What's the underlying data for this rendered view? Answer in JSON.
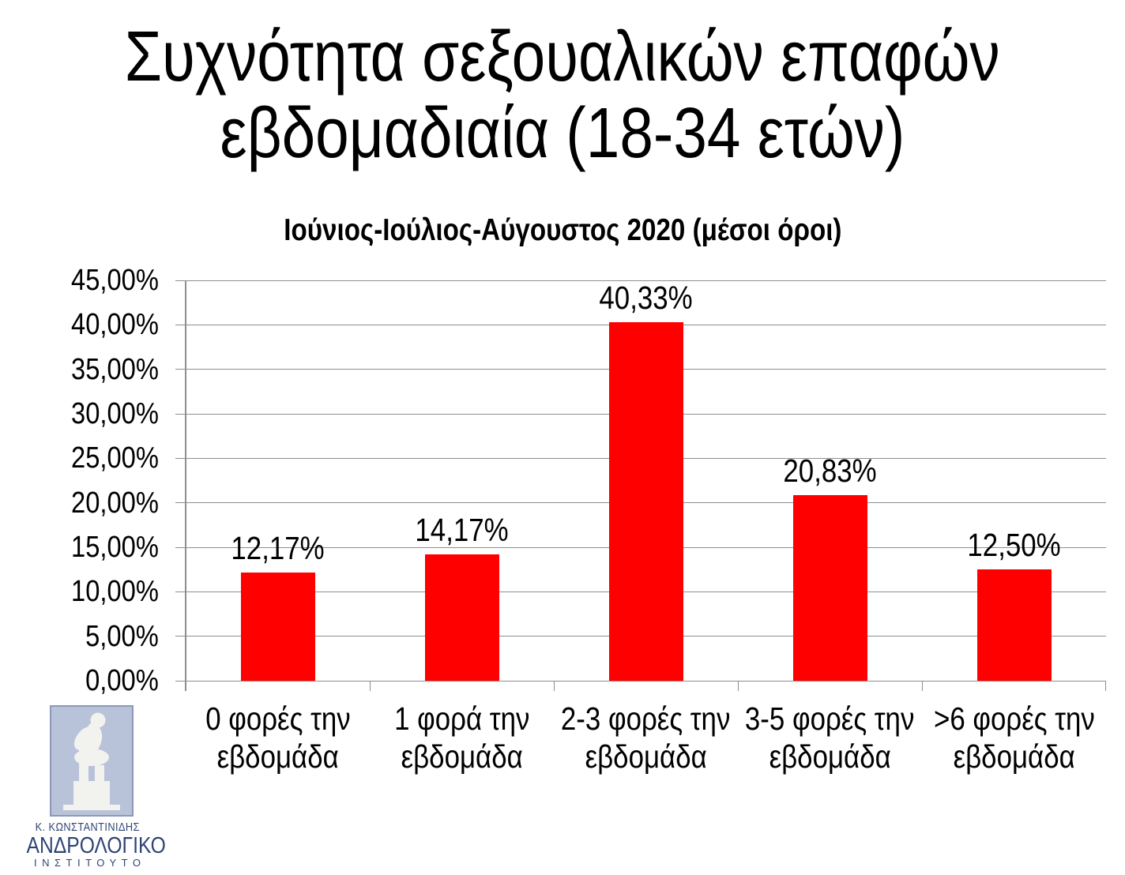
{
  "header": {
    "title_line1": "Συχνότητα σεξουαλικών επαφών",
    "title_line2": "εβδομαδιαία (18-34 ετών)",
    "subtitle": "Ιούνιος-Ιούλιος-Αύγουστος 2020 (μέσοι όροι)"
  },
  "chart_data": {
    "type": "bar",
    "title": "Συχνότητα σεξουαλικών επαφών εβδομαδιαία (18-34 ετών)",
    "subtitle": "Ιούνιος-Ιούλιος-Αύγουστος 2020 (μέσοι όροι)",
    "categories": [
      "0 φορές την εβδομάδα",
      "1 φορά την εβδομάδα",
      "2-3 φορές την εβδομάδα",
      "3-5 φορές την εβδομάδα",
      ">6 φορές την εβδομάδα"
    ],
    "category_lines": [
      [
        "0 φορές την",
        "εβδομάδα"
      ],
      [
        "1 φορά την",
        "εβδομάδα"
      ],
      [
        "2-3 φορές την",
        "εβδομάδα"
      ],
      [
        "3-5 φορές την",
        "εβδομάδα"
      ],
      [
        ">6 φορές την",
        "εβδομάδα"
      ]
    ],
    "values": [
      12.17,
      14.17,
      40.33,
      20.83,
      12.5
    ],
    "value_labels": [
      "12,17%",
      "14,17%",
      "40,33%",
      "20,83%",
      "12,50%"
    ],
    "ylim": [
      0,
      45
    ],
    "ytick_step": 5,
    "ytick_labels": [
      "0,00%",
      "5,00%",
      "10,00%",
      "15,00%",
      "20,00%",
      "25,00%",
      "30,00%",
      "35,00%",
      "40,00%",
      "45,00%"
    ],
    "grid": true,
    "legend": "none",
    "bar_color": "#FF0000",
    "grid_color": "#8E8E8E",
    "label_color": "#000000"
  },
  "logo": {
    "line1": "Κ. ΚΩΝΣΤΑΝΤΙΝΙΔΗΣ",
    "line2": "ΑΝΔΡΟΛΟΓΙΚΟ",
    "line3": "ΙΝΣΤΙΤΟΥΤΟ",
    "text_color": "#2E4574",
    "panel_fill": "#B8C2D9",
    "panel_border": "#8A99B9",
    "statue_fill": "#F2F2EE",
    "statue_icon": "thinker-statue-icon"
  }
}
